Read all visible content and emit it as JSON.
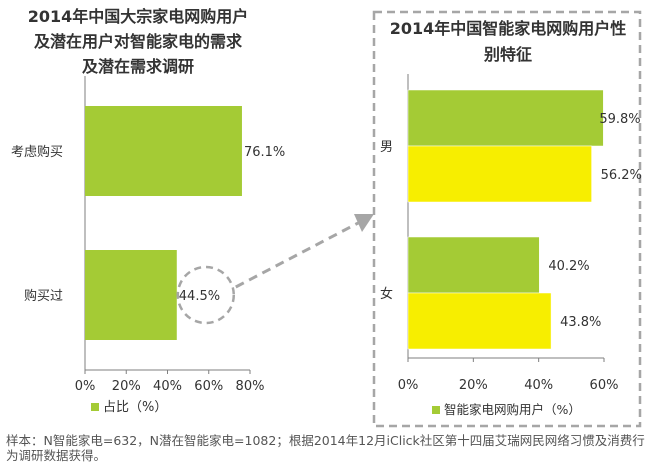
{
  "colors": {
    "green": "#a4cb35",
    "yellow": "#f7ee00",
    "axis": "#7f7f7f",
    "dash": "#a6a6a6",
    "text": "#333333"
  },
  "chart_data": [
    {
      "type": "bar",
      "orientation": "horizontal",
      "title_lines": [
        "2014年中国大宗家电网购用户",
        "及潜在用户对智能家电的需求",
        "及潜在需求调研"
      ],
      "categories": [
        "考虑购买",
        "购买过"
      ],
      "series": [
        {
          "name": "占比（%）",
          "values": [
            76.1,
            44.5
          ],
          "labels": [
            "76.1%",
            "44.5%"
          ]
        }
      ],
      "xlim": [
        0,
        80
      ],
      "xticks": [
        0,
        20,
        40,
        60,
        80
      ],
      "xtick_labels": [
        "0%",
        "20%",
        "40%",
        "60%",
        "80%"
      ],
      "legend": "bottom",
      "highlight": "44.5%"
    },
    {
      "type": "bar",
      "orientation": "horizontal",
      "title_lines": [
        "2014年中国智能家电网购用户性",
        "别特征"
      ],
      "categories": [
        "男",
        "女"
      ],
      "series": [
        {
          "name": "智能家电网购用户（%）",
          "values": [
            59.8,
            40.2
          ],
          "labels": [
            "59.8%",
            "40.2%"
          ]
        },
        {
          "name": "",
          "values": [
            56.2,
            43.8
          ],
          "labels": [
            "56.2%",
            "43.8%"
          ]
        }
      ],
      "xlim": [
        0,
        60
      ],
      "xticks": [
        0,
        20,
        40,
        60
      ],
      "xtick_labels": [
        "0%",
        "20%",
        "40%",
        "60%"
      ],
      "legend": "bottom"
    }
  ],
  "footnote": "样本：N智能家电=632，N潜在智能家电=1082；根据2014年12月iClick社区第十四届艾瑞网民网络习惯及消费行为调研数据获得。"
}
